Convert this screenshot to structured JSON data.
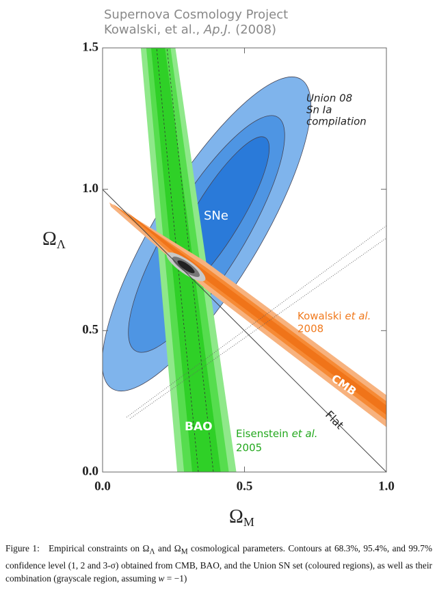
{
  "chart_data": {
    "type": "contour",
    "title": "Supernova Cosmology Project",
    "subtitle": [
      "Kowalski, et al., ",
      "Ap.J.",
      " (2008)"
    ],
    "xlabel": [
      "Ω",
      "M"
    ],
    "ylabel": [
      "Ω",
      "Λ"
    ],
    "xlim": [
      0,
      1
    ],
    "ylim": [
      0,
      1.5
    ],
    "xticks": [
      {
        "value": 0,
        "label": "0.0"
      },
      {
        "value": 0.5,
        "label": "0.5"
      },
      {
        "value": 1,
        "label": "1.0"
      }
    ],
    "yticks": [
      {
        "value": 0,
        "label": "0.0"
      },
      {
        "value": 0.5,
        "label": "0.5"
      },
      {
        "value": 1,
        "label": "1.0"
      },
      {
        "value": 1.5,
        "label": "1.5"
      }
    ],
    "annotations": {
      "union": [
        "Union 08",
        "Sn Ia",
        "compilation"
      ],
      "sne": "SNe",
      "kowalski": [
        "Kowalski ",
        "et al.",
        "2008"
      ],
      "cmb": "CMB",
      "bao": "BAO",
      "eisenstein": [
        "Eisenstein ",
        "et al.",
        "2005"
      ],
      "flat": "Flat"
    }
  },
  "caption": [
    "Figure 1:",
    "Empirical constraints on Ω",
    "Λ",
    " and Ω",
    "M",
    " cosmological parameters. Contours at 68.3%, 95.4%, and 99.7% confidence level (1, 2 and 3-σ) obtained from CMB, BAO, and the Union SN set (coloured regions), as well as their combination (grayscale region, assuming ",
    "w",
    " = −1)"
  ]
}
